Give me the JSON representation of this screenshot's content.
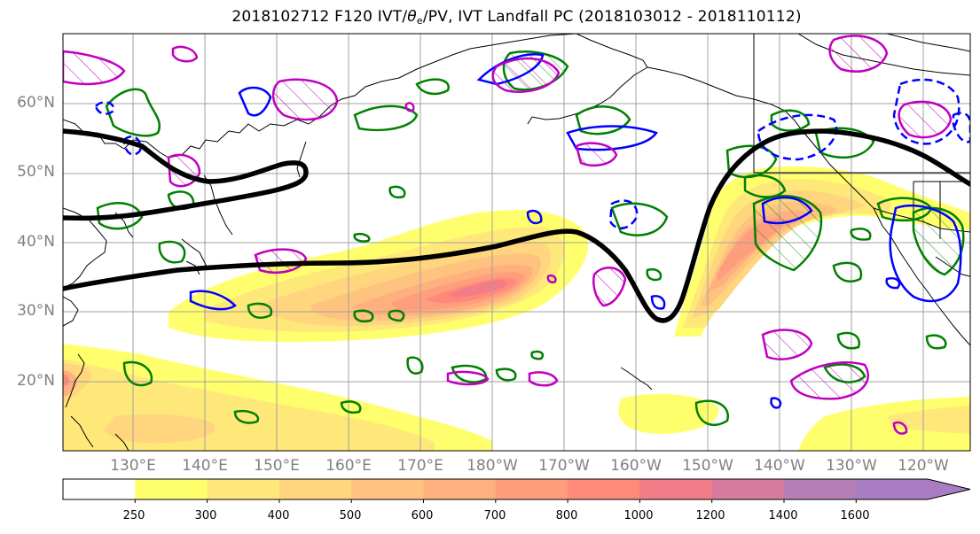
{
  "title": {
    "prefix": "2018102712 F120 IVT/",
    "theta": "θ",
    "sub": "e",
    "suffix": "/PV, IVT Landfall PC (2018103012 - 2018110112)"
  },
  "axes": {
    "lat_labels": [
      "60°N",
      "50°N",
      "40°N",
      "30°N",
      "20°N"
    ],
    "lon_labels": [
      "130°E",
      "140°E",
      "150°E",
      "160°E",
      "170°E",
      "180°W",
      "170°W",
      "160°W",
      "150°W",
      "140°W",
      "130°W",
      "120°W"
    ]
  },
  "colorbar": {
    "levels": [
      "250",
      "300",
      "400",
      "500",
      "600",
      "700",
      "800",
      "1000",
      "1200",
      "1400",
      "1600"
    ],
    "colors": [
      "#ffffff",
      "#ffff6e",
      "#ffe87a",
      "#ffd57e",
      "#ffc380",
      "#ffb07f",
      "#ff9e7d",
      "#ff8a7a",
      "#f47b88",
      "#d87b9f",
      "#b57eb4",
      "#a97dc3"
    ]
  },
  "contour_colors": {
    "theta_e": "#000000",
    "pv_low": "#008000",
    "pv_high": "#0000ff",
    "ivt_pc": "#c000c0"
  }
}
